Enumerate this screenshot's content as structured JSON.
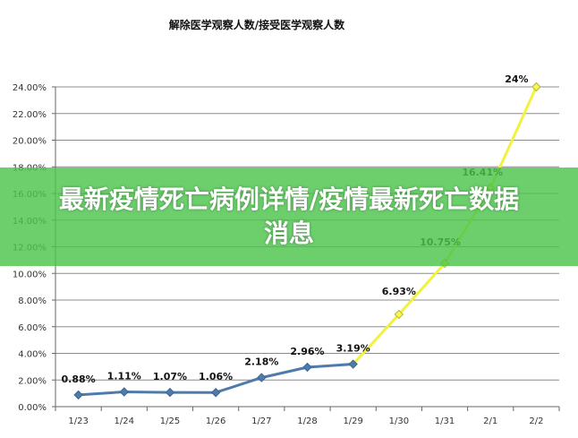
{
  "chart_data": {
    "type": "line",
    "title": "解除医学观察人数/接受医学观察人数",
    "categories": [
      "1/23",
      "1/24",
      "1/25",
      "1/26",
      "1/27",
      "1/28",
      "1/29",
      "1/30",
      "1/31",
      "2/1",
      "2/2"
    ],
    "y_tick_labels": [
      "0.00%",
      "2.00%",
      "4.00%",
      "6.00%",
      "8.00%",
      "10.00%",
      "12.00%",
      "14.00%",
      "16.00%",
      "18.00%",
      "20.00%",
      "22.00%",
      "24.00%"
    ],
    "ylim": [
      0,
      24
    ],
    "grid": true,
    "series": [
      {
        "values": [
          0.88,
          1.11,
          1.07,
          1.06,
          2.18,
          2.96,
          3.19,
          null,
          null,
          null,
          null
        ],
        "labels": [
          "0.88%",
          "1.11%",
          "1.07%",
          "1.06%",
          "2.18%",
          "2.96%",
          "3.19%",
          "",
          "",
          "",
          ""
        ],
        "color": "#4f7bab",
        "marker": "diamond"
      },
      {
        "values": [
          null,
          null,
          null,
          null,
          null,
          null,
          3.19,
          6.93,
          10.75,
          16.41,
          24
        ],
        "labels": [
          "",
          "",
          "",
          "",
          "",
          "",
          "",
          "6.93%",
          "10.75%",
          "16.41%",
          "24%"
        ],
        "color": "#f2f23c",
        "marker": "diamond"
      }
    ]
  },
  "banner": {
    "text": "最新疫情死亡病例详情/疫情最新死亡数据消息",
    "color": "#4cc44c"
  }
}
